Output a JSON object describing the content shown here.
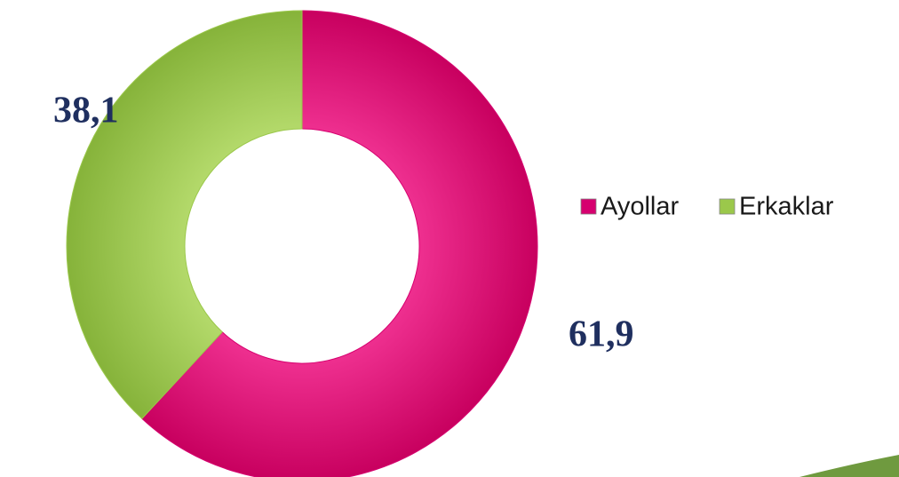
{
  "chart_data": {
    "type": "donut",
    "categories": [
      "Ayollar",
      "Erkaklar"
    ],
    "values": [
      61.9,
      38.1
    ],
    "value_labels": [
      "61,9",
      "38,1"
    ],
    "colors": [
      "#d6006f",
      "#9bc84b"
    ],
    "legend": "right"
  }
}
